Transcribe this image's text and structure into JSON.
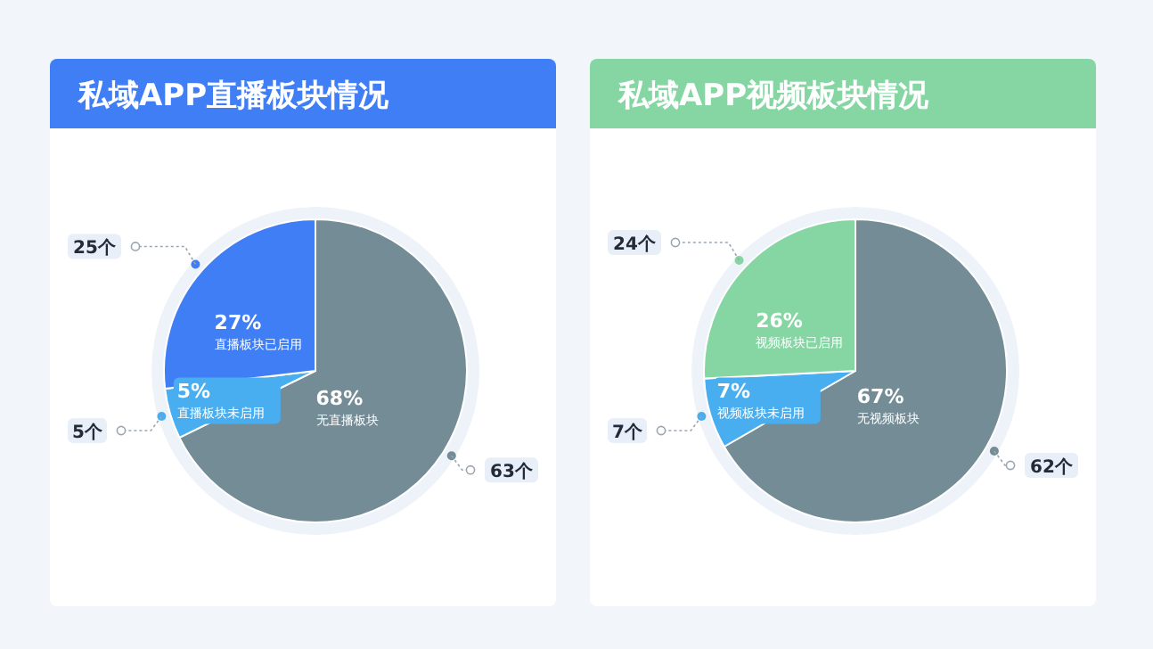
{
  "chart_data": [
    {
      "type": "pie",
      "title": "私域APP直播板块情况",
      "categories": [
        "无直播板块",
        "直播板块未启用",
        "直播板块已启用"
      ],
      "values": [
        63,
        5,
        25
      ],
      "value_labels": [
        "63个",
        "5个",
        "25个"
      ],
      "colors": [
        "#738c96",
        "#48aef0",
        "#3f7ef5"
      ],
      "annotations": [
        {
          "text": "68%",
          "x": "无直播板块"
        },
        {
          "text": "5%",
          "x": "直播板块未启用"
        },
        {
          "text": "27%",
          "x": "直播板块已启用"
        }
      ]
    },
    {
      "type": "pie",
      "title": "私域APP视频板块情况",
      "categories": [
        "无视频板块",
        "视频板块未启用",
        "视频板块已启用"
      ],
      "values": [
        62,
        7,
        24
      ],
      "value_labels": [
        "62个",
        "7个",
        "24个"
      ],
      "colors": [
        "#738c96",
        "#48aef0",
        "#85d6a3"
      ],
      "annotations": [
        {
          "text": "67%",
          "x": "无视频板块"
        },
        {
          "text": "7%",
          "x": "视频板块未启用"
        },
        {
          "text": "26%",
          "x": "视频板块已启用"
        }
      ]
    }
  ]
}
